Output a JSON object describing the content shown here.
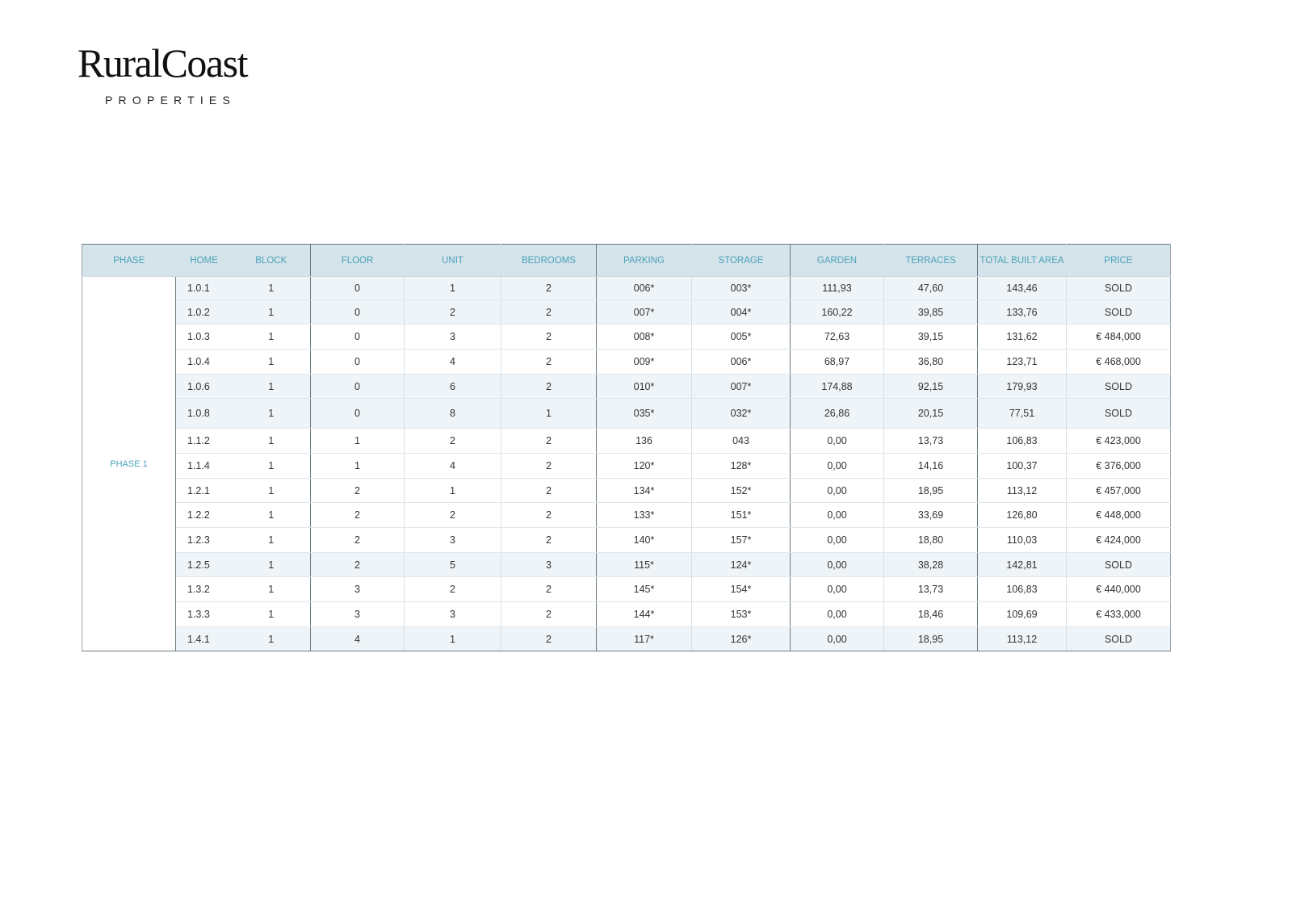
{
  "brand": {
    "name": "RuralCoast",
    "tagline": "PROPERTIES"
  },
  "table": {
    "headers": [
      "PHASE",
      "HOME",
      "BLOCK",
      "FLOOR",
      "UNIT",
      "BEDROOMS",
      "PARKING",
      "STORAGE",
      "GARDEN",
      "TERRACES",
      "TOTAL BUILT AREA",
      "PRICE"
    ],
    "phase": "PHASE 1",
    "rows": [
      [
        "1.0.1",
        "1",
        "0",
        "1",
        "2",
        "006*",
        "003*",
        "111,93",
        "47,60",
        "143,46",
        "SOLD"
      ],
      [
        "1.0.2",
        "1",
        "0",
        "2",
        "2",
        "007*",
        "004*",
        "160,22",
        "39,85",
        "133,76",
        "SOLD"
      ],
      [
        "1.0.3",
        "1",
        "0",
        "3",
        "2",
        "008*",
        "005*",
        "72,63",
        "39,15",
        "131,62",
        "€ 484,000"
      ],
      [
        "1.0.4",
        "1",
        "0",
        "4",
        "2",
        "009*",
        "006*",
        "68,97",
        "36,80",
        "123,71",
        "€ 468,000"
      ],
      [
        "1.0.6",
        "1",
        "0",
        "6",
        "2",
        "010*",
        "007*",
        "174,88",
        "92,15",
        "179,93",
        "SOLD"
      ],
      [
        "1.0.8",
        "1",
        "0",
        "8",
        "1",
        "035*",
        "032*",
        "26,86",
        "20,15",
        "77,51",
        "SOLD"
      ],
      [
        "1.1.2",
        "1",
        "1",
        "2",
        "2",
        "136",
        "043",
        "0,00",
        "13,73",
        "106,83",
        "€ 423,000"
      ],
      [
        "1.1.4",
        "1",
        "1",
        "4",
        "2",
        "120*",
        "128*",
        "0,00",
        "14,16",
        "100,37",
        "€ 376,000"
      ],
      [
        "1.2.1",
        "1",
        "2",
        "1",
        "2",
        "134*",
        "152*",
        "0,00",
        "18,95",
        "113,12",
        "€ 457,000"
      ],
      [
        "1.2.2",
        "1",
        "2",
        "2",
        "2",
        "133*",
        "151*",
        "0,00",
        "33,69",
        "126,80",
        "€ 448,000"
      ],
      [
        "1.2.3",
        "1",
        "2",
        "3",
        "2",
        "140*",
        "157*",
        "0,00",
        "18,80",
        "110,03",
        "€ 424,000"
      ],
      [
        "1.2.5",
        "1",
        "2",
        "5",
        "3",
        "115*",
        "124*",
        "0,00",
        "38,28",
        "142,81",
        "SOLD"
      ],
      [
        "1.3.2",
        "1",
        "3",
        "2",
        "2",
        "145*",
        "154*",
        "0,00",
        "13,73",
        "106,83",
        "€ 440,000"
      ],
      [
        "1.3.3",
        "1",
        "3",
        "3",
        "2",
        "144*",
        "153*",
        "0,00",
        "18,46",
        "109,69",
        "€ 433,000"
      ],
      [
        "1.4.1",
        "1",
        "4",
        "1",
        "2",
        "117*",
        "126*",
        "0,00",
        "18,95",
        "113,12",
        "SOLD"
      ]
    ]
  },
  "colors": {
    "header_bg": "#d5e3ea",
    "header_text": "#4aa3b8",
    "row_shade": "#eef4f7"
  }
}
